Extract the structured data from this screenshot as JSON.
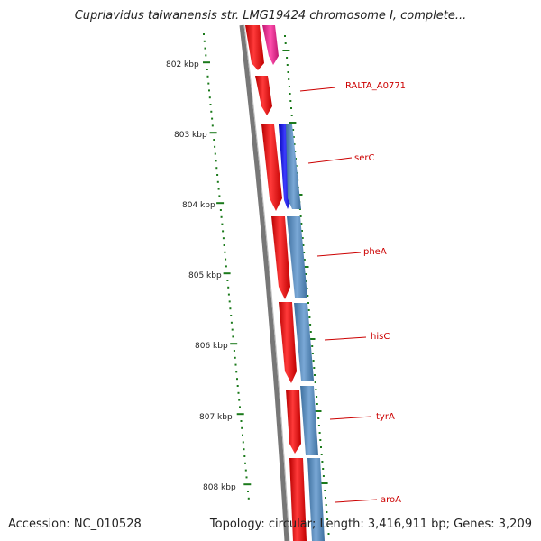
{
  "title": "Cupriavidus taiwanensis str. LMG19424 chromosome I, complete...",
  "footer": {
    "accession": "Accession: NC_010528",
    "summary": "Topology: circular; Length: 3,416,911 bp; Genes: 3,209"
  },
  "ruler": {
    "labels": [
      "802 kbp",
      "803 kbp",
      "804 kbp",
      "805 kbp",
      "806 kbp",
      "807 kbp",
      "808 kbp"
    ]
  },
  "gene_labels": [
    "RALTA_A0771",
    "serC",
    "pheA",
    "hisC",
    "tyrA",
    "aroA"
  ],
  "colors": {
    "backbone": "#777777",
    "gene_strand": "#ee1111",
    "cds_strand": "#4f86b8",
    "blue_feature": "#1a1ae6",
    "pink_feature": "#ec2a8c",
    "ticks": "#1b7a1b",
    "label": "#cc0000"
  }
}
